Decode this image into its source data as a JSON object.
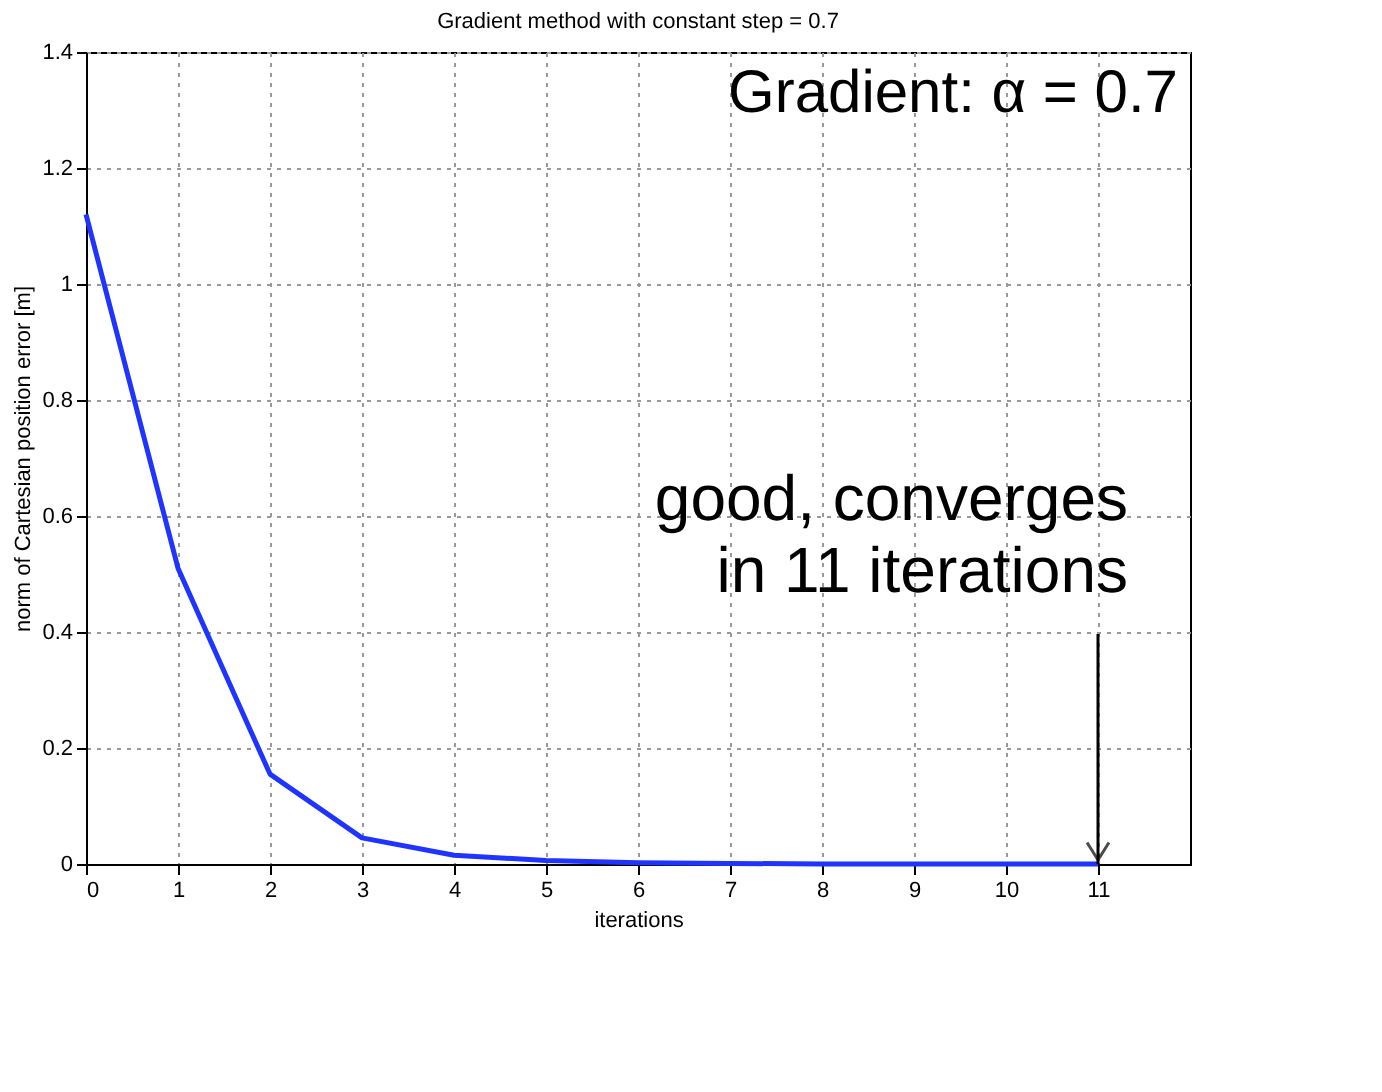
{
  "chart_data": {
    "type": "line",
    "title": "Gradient method with constant step = 0.7",
    "xlabel": "iterations",
    "ylabel": "norm of Cartesian position error [m]",
    "x": [
      0,
      1,
      2,
      3,
      4,
      5,
      6,
      7,
      8,
      9,
      10,
      11
    ],
    "series": [
      {
        "color": "#1f35ff",
        "values": [
          1.12,
          0.51,
          0.155,
          0.045,
          0.015,
          0.006,
          0.002,
          0.001,
          0,
          0,
          0,
          0
        ]
      }
    ],
    "xlim": [
      0,
      12
    ],
    "xticks": [
      0,
      1,
      2,
      3,
      4,
      5,
      6,
      7,
      8,
      9,
      10,
      11
    ],
    "ylim": [
      0,
      1.4
    ],
    "yticks": [
      0,
      0.2,
      0.4,
      0.6,
      0.8,
      1,
      1.2,
      1.4
    ],
    "grid": true,
    "line_style": "solid",
    "marker": "none",
    "annotations": [
      "Gradient: α = 0.7",
      {
        "text": "good, converges in 11 iterations",
        "x": 11,
        "y": 0
      }
    ]
  }
}
